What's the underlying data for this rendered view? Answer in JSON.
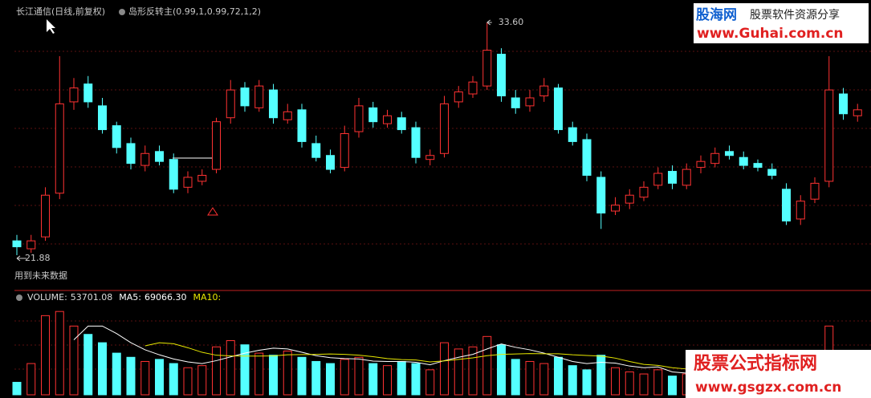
{
  "chart_data": [
    {
      "type": "candlestick",
      "title": "长江通信(日线,前复权)",
      "indicator": "岛形反转主(0.99,1,0.99,72,1,2)",
      "note": "用到未来数据",
      "up_color": "#ff3232",
      "down_color": "#54ffff",
      "ylim": [
        20.1,
        34.73
      ],
      "open": [
        22.6,
        22.2,
        22.8,
        25.0,
        29.6,
        30.5,
        29.4,
        28.4,
        27.5,
        26.4,
        27.1,
        26.7,
        25.3,
        25.6,
        26.2,
        28.8,
        30.3,
        29.3,
        30.2,
        28.7,
        29.2,
        27.5,
        26.9,
        26.3,
        28.1,
        29.3,
        28.5,
        28.8,
        28.3,
        26.7,
        27.0,
        29.6,
        30.0,
        30.4,
        32.0,
        29.8,
        29.4,
        29.9,
        30.3,
        28.3,
        27.7,
        25.8,
        24.1,
        24.5,
        24.8,
        25.4,
        26.1,
        25.4,
        26.3,
        26.5,
        27.1,
        26.8,
        26.5,
        26.2,
        25.2,
        23.7,
        24.7,
        25.6,
        30.0,
        28.9
      ],
      "high": [
        22.9,
        22.9,
        25.3,
        31.9,
        30.8,
        30.9,
        29.8,
        28.6,
        27.8,
        27.4,
        27.4,
        27.0,
        26.1,
        26.2,
        28.8,
        30.7,
        30.6,
        30.7,
        30.5,
        29.5,
        29.5,
        27.9,
        27.2,
        28.4,
        29.8,
        29.6,
        29.2,
        29.1,
        28.6,
        27.2,
        29.9,
        30.4,
        30.9,
        33.6,
        32.3,
        30.2,
        30.2,
        30.8,
        30.5,
        28.6,
        28.0,
        26.1,
        24.8,
        25.2,
        25.6,
        26.3,
        26.4,
        26.5,
        26.9,
        27.3,
        27.4,
        27.1,
        26.7,
        26.5,
        25.5,
        24.9,
        25.8,
        31.9,
        30.3,
        29.5
      ],
      "low": [
        21.88,
        22.0,
        22.6,
        24.7,
        29.2,
        29.3,
        28.0,
        27.0,
        26.2,
        26.1,
        26.4,
        25.0,
        25.0,
        25.4,
        26.0,
        28.5,
        29.1,
        29.1,
        28.5,
        28.5,
        27.3,
        26.6,
        26.0,
        26.1,
        27.8,
        28.3,
        28.3,
        28.0,
        26.5,
        26.4,
        26.8,
        29.3,
        29.8,
        30.2,
        29.6,
        29.0,
        29.1,
        29.6,
        28.0,
        27.4,
        25.6,
        23.2,
        23.9,
        24.2,
        24.6,
        25.2,
        25.2,
        25.2,
        26.0,
        26.3,
        26.7,
        26.2,
        26.1,
        25.7,
        23.4,
        23.4,
        24.5,
        25.3,
        28.7,
        28.6
      ],
      "close": [
        22.3,
        22.6,
        24.9,
        29.5,
        30.3,
        29.6,
        28.2,
        27.3,
        26.5,
        27.0,
        26.6,
        25.2,
        25.8,
        25.9,
        28.6,
        30.2,
        29.4,
        30.4,
        28.8,
        29.1,
        27.6,
        26.8,
        26.2,
        28.0,
        29.4,
        28.6,
        28.9,
        28.2,
        26.8,
        26.9,
        29.5,
        30.1,
        30.6,
        32.2,
        29.9,
        29.3,
        29.8,
        30.4,
        28.2,
        27.6,
        25.9,
        24.0,
        24.4,
        24.9,
        25.3,
        26.0,
        25.5,
        26.2,
        26.6,
        27.0,
        26.9,
        26.4,
        26.3,
        25.9,
        23.6,
        24.6,
        25.5,
        30.2,
        29.0,
        29.2
      ],
      "annotations": [
        {
          "label": "33.60",
          "value": 33.6
        },
        {
          "label": "21.88",
          "value": 21.88
        }
      ]
    },
    {
      "type": "volume",
      "ylim": [
        0,
        470000
      ],
      "up_color": "#ff3232",
      "down_color": "#54ffff",
      "series": [
        {
          "name": "VOLUME:",
          "legend_value": "53701.08",
          "values": [
            60000,
            150000,
            380000,
            400000,
            330000,
            290000,
            250000,
            200000,
            180000,
            160000,
            170000,
            150000,
            130000,
            140000,
            230000,
            260000,
            240000,
            200000,
            190000,
            210000,
            180000,
            160000,
            150000,
            170000,
            180000,
            150000,
            140000,
            160000,
            150000,
            120000,
            250000,
            220000,
            230000,
            280000,
            240000,
            170000,
            160000,
            150000,
            180000,
            140000,
            120000,
            190000,
            130000,
            110000,
            100000,
            120000,
            90000,
            100000,
            110000,
            95000,
            90000,
            85000,
            90000,
            80000,
            120000,
            100000,
            95000,
            330000,
            120000,
            53701.08
          ]
        },
        {
          "name": "MA5:",
          "legend_value": "69066.30",
          "color": "#ffffff",
          "values": [
            null,
            null,
            null,
            null,
            264000,
            330000,
            330000,
            294000,
            250000,
            216000,
            192000,
            172000,
            158000,
            150000,
            164000,
            182000,
            200000,
            214000,
            224000,
            220000,
            204000,
            188000,
            178000,
            174000,
            172000,
            162000,
            160000,
            160000,
            156000,
            144000,
            164000,
            180000,
            194000,
            220000,
            244000,
            228000,
            216000,
            200000,
            180000,
            160000,
            150000,
            156000,
            152000,
            138000,
            130000,
            134000,
            110000,
            104000,
            104000,
            103000,
            97000,
            96000,
            94000,
            88000,
            93000,
            95000,
            96000,
            130000,
            128000,
            69066.3
          ]
        },
        {
          "name": "MA10:",
          "color": "#e8e800",
          "values": [
            null,
            null,
            null,
            null,
            null,
            null,
            null,
            null,
            null,
            235000,
            250000,
            245000,
            226000,
            204000,
            190000,
            187000,
            186000,
            186000,
            187000,
            192000,
            193000,
            194000,
            196000,
            194000,
            190000,
            183000,
            174000,
            169000,
            167000,
            158000,
            163000,
            170000,
            177000,
            188000,
            194000,
            196000,
            198000,
            197000,
            197000,
            192000,
            189000,
            186000,
            176000,
            160000,
            146000,
            141000,
            130000,
            124000,
            117000,
            114000,
            109000,
            103000,
            99000,
            96000,
            96000,
            96000,
            97000,
            121000,
            124000,
            110000
          ]
        }
      ]
    }
  ],
  "watermarks": {
    "top_brand": "股海网",
    "top_slogan": "股票软件资源分享",
    "top_url": "www.Guhai.com.cn",
    "bottom_brand": "股票公式指标网",
    "bottom_url": "www.gsgzx.com.cn"
  }
}
